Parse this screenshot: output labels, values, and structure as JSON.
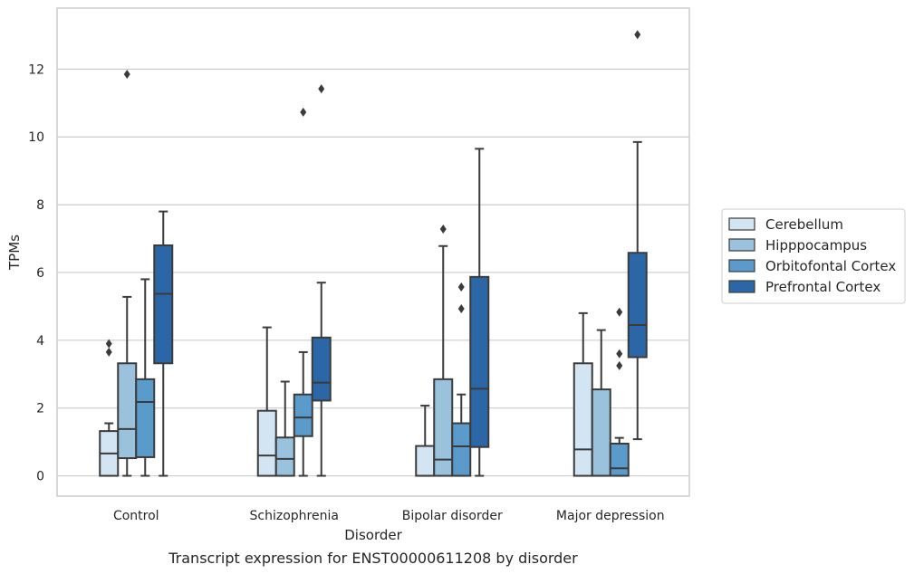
{
  "chart_data": {
    "type": "boxplot",
    "caption": "Transcript expression for ENST00000611208 by disorder",
    "xlabel": "Disorder",
    "ylabel": "TPMs",
    "ylim": [
      -0.6,
      13.8
    ],
    "yticks": [
      0,
      2,
      4,
      6,
      8,
      10,
      12
    ],
    "grid": "horizontal",
    "legend_position": "right",
    "categories": [
      "Control",
      "Schizophrenia",
      "Bipolar disorder",
      "Major depression"
    ],
    "series": [
      {
        "name": "Cerebellum",
        "color": "#d3e4f3",
        "boxes": [
          {
            "whislo": 0,
            "q1": 0,
            "med": 0.66,
            "q3": 1.32,
            "whishi": 1.55,
            "fliers": [
              3.65,
              3.9
            ]
          },
          {
            "whislo": 0,
            "q1": 0,
            "med": 0.6,
            "q3": 1.92,
            "whishi": 4.38,
            "fliers": []
          },
          {
            "whislo": 0,
            "q1": 0,
            "med": 0,
            "q3": 0.88,
            "whishi": 2.07,
            "fliers": []
          },
          {
            "whislo": 0,
            "q1": 0,
            "med": 0.78,
            "q3": 3.32,
            "whishi": 4.8,
            "fliers": []
          }
        ]
      },
      {
        "name": "Hipppocampus",
        "color": "#9ac2dd",
        "boxes": [
          {
            "whislo": 0,
            "q1": 0.52,
            "med": 1.38,
            "q3": 3.32,
            "whishi": 5.28,
            "fliers": [
              11.85
            ]
          },
          {
            "whislo": 0,
            "q1": 0,
            "med": 0.5,
            "q3": 1.13,
            "whishi": 2.78,
            "fliers": []
          },
          {
            "whislo": 0,
            "q1": 0,
            "med": 0.48,
            "q3": 2.85,
            "whishi": 6.78,
            "fliers": [
              7.28
            ]
          },
          {
            "whislo": 0,
            "q1": 0,
            "med": 0,
            "q3": 2.55,
            "whishi": 4.3,
            "fliers": []
          }
        ]
      },
      {
        "name": "Orbitofontal Cortex",
        "color": "#5a9bcb",
        "boxes": [
          {
            "whislo": 0,
            "q1": 0.55,
            "med": 2.18,
            "q3": 2.85,
            "whishi": 5.8,
            "fliers": []
          },
          {
            "whislo": 0,
            "q1": 1.17,
            "med": 1.72,
            "q3": 2.4,
            "whishi": 3.65,
            "fliers": [
              10.73
            ]
          },
          {
            "whislo": 0,
            "q1": 0,
            "med": 0.87,
            "q3": 1.55,
            "whishi": 2.4,
            "fliers": [
              4.93,
              5.57
            ]
          },
          {
            "whislo": 0,
            "q1": 0,
            "med": 0.22,
            "q3": 0.95,
            "whishi": 1.12,
            "fliers": [
              3.25,
              3.6,
              4.83
            ]
          }
        ]
      },
      {
        "name": "Prefrontal Cortex",
        "color": "#2b66a6",
        "boxes": [
          {
            "whislo": 0,
            "q1": 3.32,
            "med": 5.37,
            "q3": 6.8,
            "whishi": 7.8,
            "fliers": []
          },
          {
            "whislo": 0,
            "q1": 2.22,
            "med": 2.75,
            "q3": 4.08,
            "whishi": 5.7,
            "fliers": [
              11.42
            ]
          },
          {
            "whislo": 0,
            "q1": 0.85,
            "med": 2.57,
            "q3": 5.87,
            "whishi": 9.65,
            "fliers": []
          },
          {
            "whislo": 1.08,
            "q1": 3.5,
            "med": 4.45,
            "q3": 6.58,
            "whishi": 9.85,
            "fliers": [
              13.02
            ]
          }
        ]
      }
    ]
  }
}
